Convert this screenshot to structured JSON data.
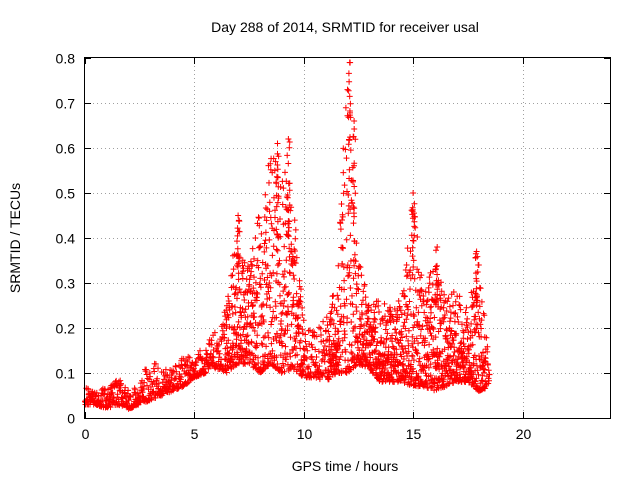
{
  "chart_data": {
    "type": "scatter",
    "title": "Day 288 of 2014, SRMTID for receiver usal",
    "xlabel": "GPS time / hours",
    "ylabel": "SRMTID / TECUs",
    "xlim": [
      0,
      24
    ],
    "ylim": [
      0,
      0.8
    ],
    "x_ticks": [
      0,
      5,
      10,
      15,
      20
    ],
    "x_tick_labels": [
      "0",
      "5",
      "10",
      "15",
      "20"
    ],
    "y_ticks": [
      0,
      0.1,
      0.2,
      0.3,
      0.4,
      0.5,
      0.6,
      0.7,
      0.8
    ],
    "y_tick_labels": [
      "0",
      "0.1",
      "0.2",
      "0.3",
      "0.4",
      "0.5",
      "0.6",
      "0.7",
      "0.8"
    ],
    "grid": true,
    "marker": "+",
    "color": "#ff0000",
    "envelope": {
      "description": "sampled envelope of the dense scatter (hour, typical min, typical max)",
      "x": [
        0.0,
        0.5,
        1.0,
        1.5,
        2.0,
        2.5,
        3.0,
        3.5,
        4.0,
        4.5,
        5.0,
        5.5,
        6.0,
        6.5,
        7.0,
        7.5,
        8.0,
        8.5,
        9.0,
        9.5,
        10.0,
        10.5,
        11.0,
        11.5,
        12.0,
        12.5,
        13.0,
        13.5,
        14.0,
        14.5,
        15.0,
        15.5,
        16.0,
        16.5,
        17.0,
        17.5,
        18.0,
        18.5
      ],
      "low": [
        0.03,
        0.03,
        0.02,
        0.03,
        0.02,
        0.03,
        0.04,
        0.05,
        0.06,
        0.07,
        0.09,
        0.1,
        0.11,
        0.1,
        0.12,
        0.12,
        0.1,
        0.12,
        0.1,
        0.11,
        0.09,
        0.09,
        0.08,
        0.1,
        0.1,
        0.12,
        0.11,
        0.08,
        0.08,
        0.08,
        0.07,
        0.07,
        0.06,
        0.07,
        0.08,
        0.08,
        0.06,
        0.07
      ],
      "high": [
        0.07,
        0.06,
        0.07,
        0.09,
        0.06,
        0.08,
        0.14,
        0.11,
        0.12,
        0.14,
        0.14,
        0.16,
        0.2,
        0.27,
        0.44,
        0.34,
        0.47,
        0.6,
        0.61,
        0.49,
        0.24,
        0.2,
        0.22,
        0.3,
        0.79,
        0.35,
        0.27,
        0.26,
        0.25,
        0.27,
        0.5,
        0.27,
        0.38,
        0.26,
        0.29,
        0.24,
        0.37,
        0.12
      ]
    },
    "peaks": [
      {
        "x": 7.0,
        "y": 0.45
      },
      {
        "x": 8.8,
        "y": 0.61
      },
      {
        "x": 9.3,
        "y": 0.62
      },
      {
        "x": 12.1,
        "y": 0.79
      },
      {
        "x": 12.3,
        "y": 0.66
      },
      {
        "x": 15.0,
        "y": 0.5
      },
      {
        "x": 16.1,
        "y": 0.38
      },
      {
        "x": 17.9,
        "y": 0.37
      }
    ]
  }
}
